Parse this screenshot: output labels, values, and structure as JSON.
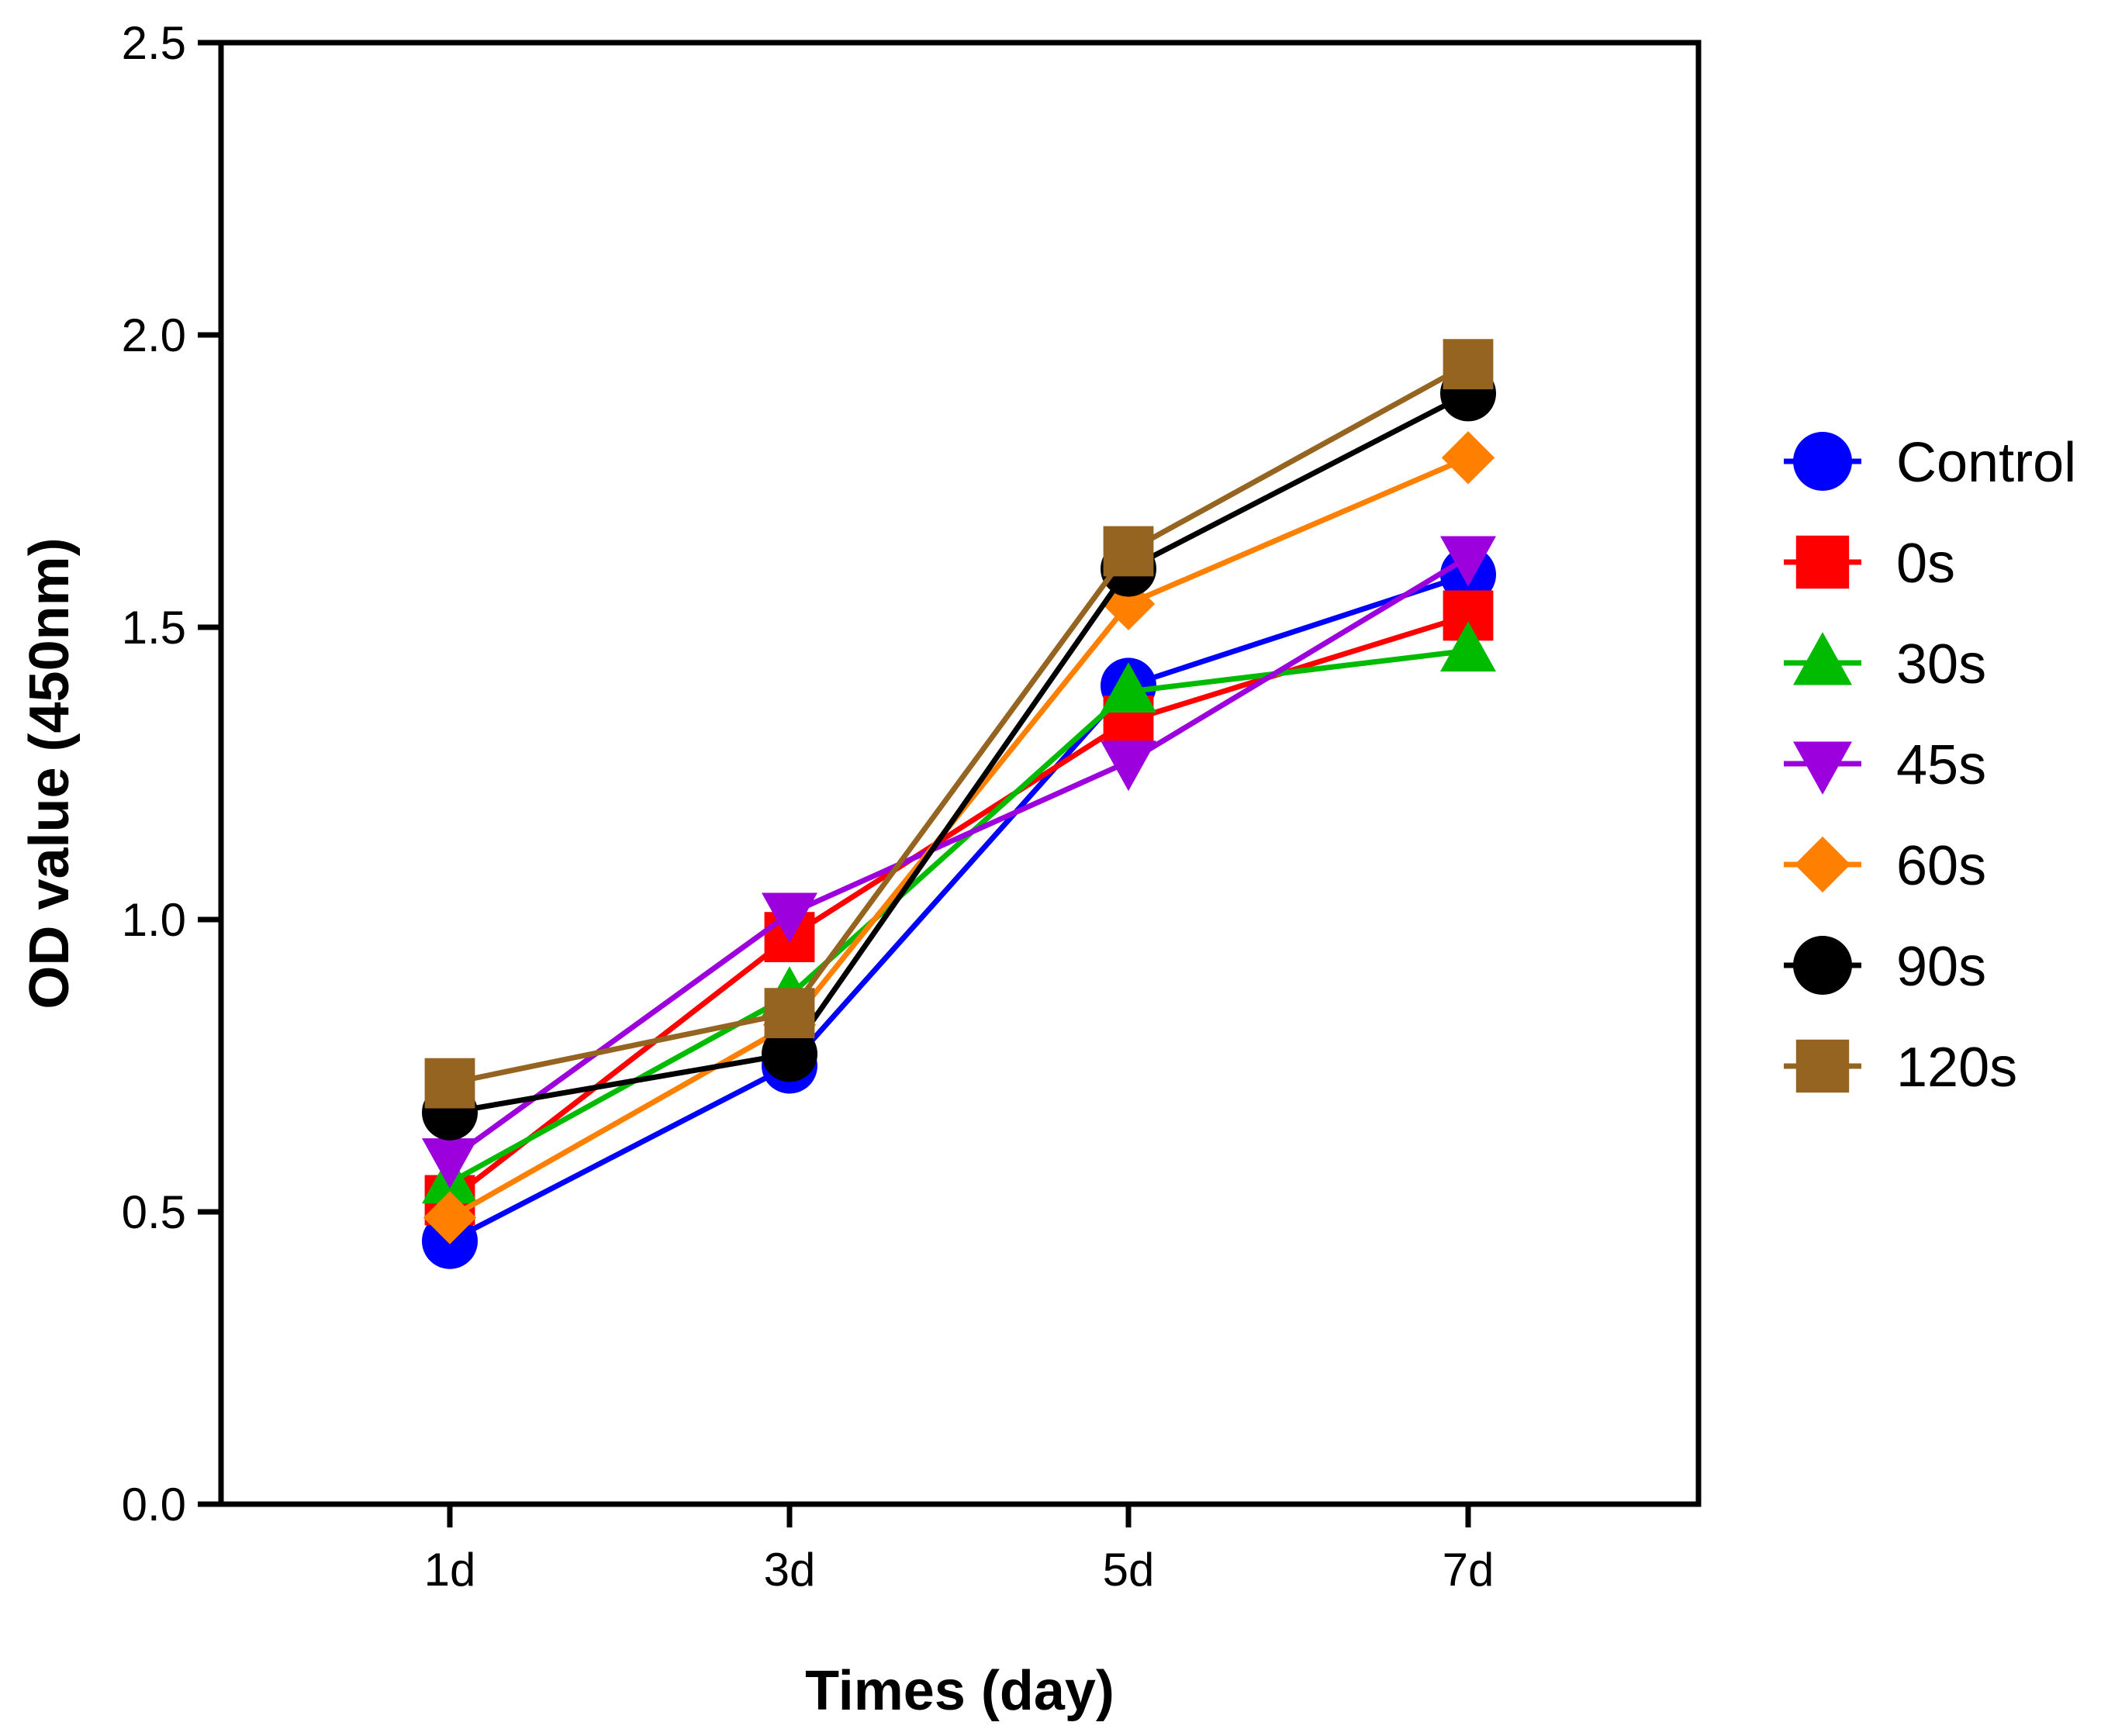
{
  "chart_data": {
    "type": "line",
    "title": "",
    "xlabel": "Times (day)",
    "ylabel": "OD value (450nm)",
    "categories": [
      "1d",
      "3d",
      "5d",
      "7d"
    ],
    "ylim": [
      0,
      2.5
    ],
    "yticks": [
      0.0,
      0.5,
      1.0,
      1.5,
      2.0,
      2.5
    ],
    "ytick_labels": [
      "0.0",
      "0.5",
      "1.0",
      "1.5",
      "2.0",
      "2.5"
    ],
    "grid": false,
    "legend_position": "right",
    "series": [
      {
        "name": "Control",
        "color": "#0000ff",
        "marker": "circle",
        "values": [
          0.45,
          0.75,
          1.4,
          1.59
        ]
      },
      {
        "name": "0s",
        "color": "#ff0000",
        "marker": "square",
        "values": [
          0.52,
          0.97,
          1.34,
          1.52
        ]
      },
      {
        "name": "30s",
        "color": "#00bb00",
        "marker": "triangle-up",
        "values": [
          0.55,
          0.87,
          1.39,
          1.46
        ]
      },
      {
        "name": "45s",
        "color": "#9b00dd",
        "marker": "triangle-down",
        "values": [
          0.59,
          1.01,
          1.27,
          1.62
        ]
      },
      {
        "name": "60s",
        "color": "#ff8000",
        "marker": "diamond",
        "values": [
          0.49,
          0.82,
          1.54,
          1.79
        ]
      },
      {
        "name": "90s",
        "color": "#000000",
        "marker": "circle",
        "values": [
          0.67,
          0.77,
          1.6,
          1.9
        ]
      },
      {
        "name": "120s",
        "color": "#946420",
        "marker": "square",
        "values": [
          0.72,
          0.84,
          1.63,
          1.95
        ]
      }
    ]
  }
}
